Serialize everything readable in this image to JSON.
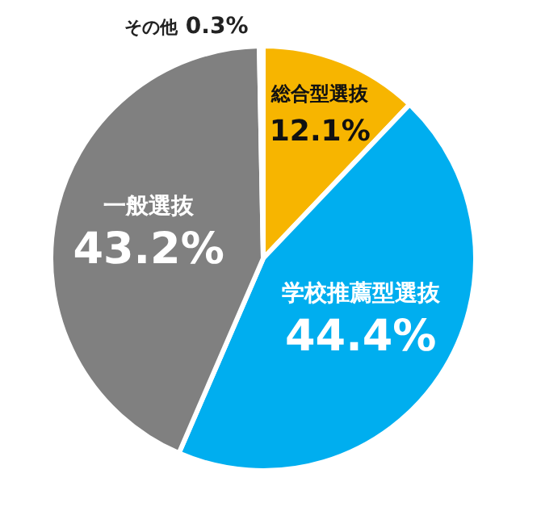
{
  "chart_data": {
    "type": "pie",
    "categories": [
      "総合型選抜",
      "学校推薦型選抜",
      "一般選抜",
      "その他"
    ],
    "values": [
      12.1,
      44.4,
      43.2,
      0.3
    ],
    "colors": [
      "#f7b500",
      "#00aeef",
      "#808080",
      "#d7161e"
    ],
    "value_labels": [
      "12.1%",
      "44.4%",
      "43.2%",
      "0.3%"
    ],
    "legend": false
  }
}
